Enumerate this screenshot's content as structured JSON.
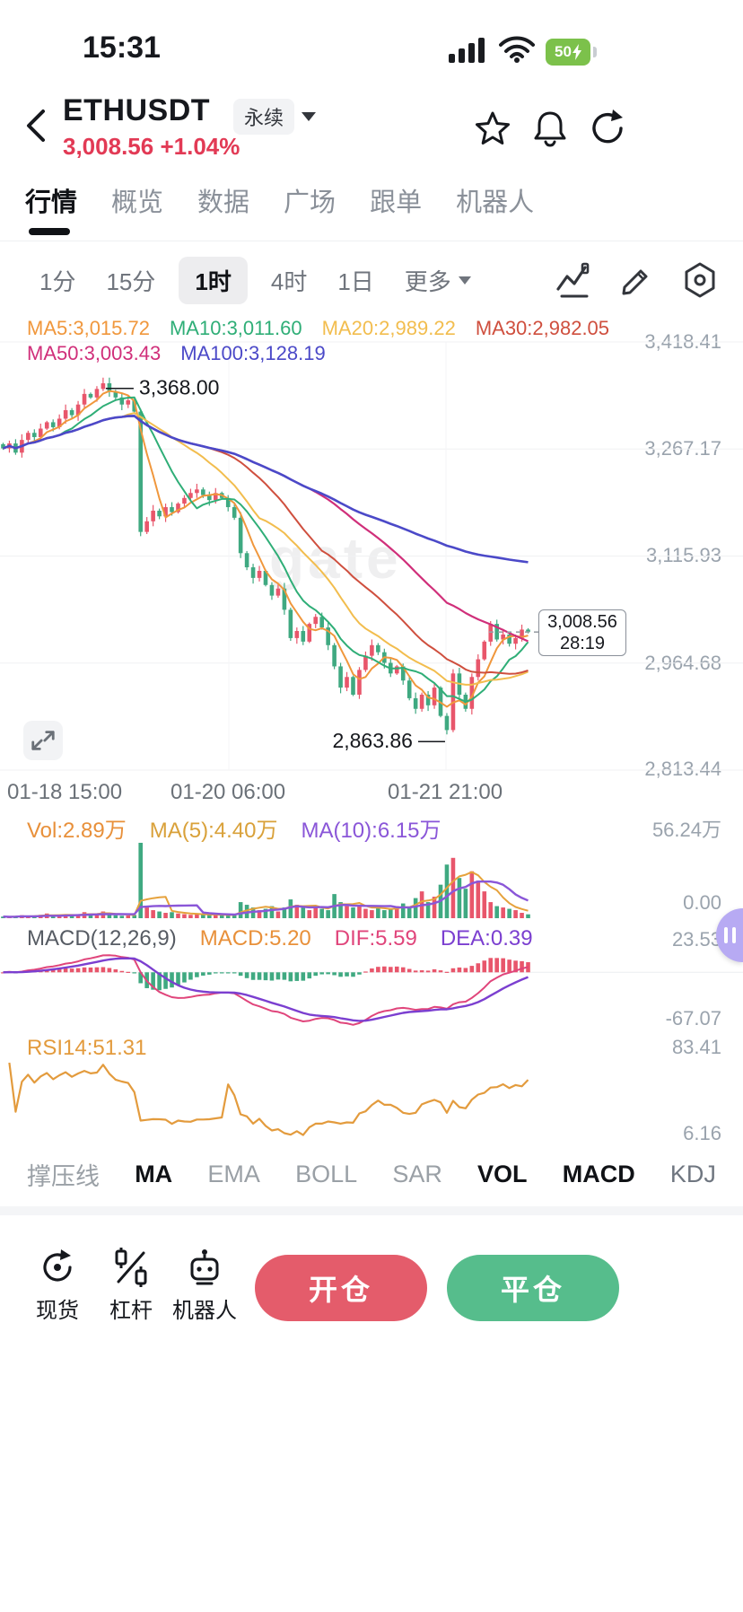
{
  "colors": {
    "up": "#e8566b",
    "down": "#3fa981",
    "accent_red": "#e23a55",
    "ma5": "#f0973c",
    "ma10": "#2fae77",
    "ma20": "#f2bd4e",
    "ma30": "#cf4f3e",
    "ma50": "#d02f7a",
    "ma100": "#4b49c8",
    "vol_ma5": "#e6a23c",
    "vol_ma10": "#8a56d8",
    "dif": "#e0457b",
    "dea": "#7b3fd0",
    "rsi": "#e39b3d",
    "btn_open": "#e45c6b",
    "btn_close": "#56bd8c"
  },
  "status_bar": {
    "time": "15:31",
    "battery_level": "50"
  },
  "header": {
    "symbol": "ETHUSDT",
    "contract_type": "永续",
    "price": "3,008.56",
    "change": "+1.04%"
  },
  "nav_tabs": {
    "items": [
      {
        "label": "行情"
      },
      {
        "label": "概览"
      },
      {
        "label": "数据"
      },
      {
        "label": "广场"
      },
      {
        "label": "跟单"
      },
      {
        "label": "机器人"
      }
    ]
  },
  "timeframe_bar": {
    "items": [
      "1分",
      "15分",
      "1时",
      "4时",
      "1日"
    ],
    "more_label": "更多"
  },
  "main_chart": {
    "ma_labels": {
      "ma5": "MA5:3,015.72",
      "ma10": "MA10:3,011.60",
      "ma20": "MA20:2,989.22",
      "ma30": "MA30:2,982.05",
      "ma50": "MA50:3,003.43",
      "ma100": "MA100:3,128.19"
    },
    "price_axis_labels": [
      "3,418.41",
      "3,267.17",
      "3,115.93",
      "2,964.68",
      "2,813.44"
    ],
    "high_label": "3,368.00",
    "low_label": "2,863.86",
    "price_box": {
      "price": "3,008.56",
      "countdown": "28:19"
    },
    "x_axis_labels": [
      "01-18 15:00",
      "01-20 06:00",
      "01-21 21:00"
    ],
    "watermark": "gate"
  },
  "volume_panel": {
    "vol_label": "Vol:2.89万",
    "ma5_label": "MA(5):4.40万",
    "ma10_label": "MA(10):6.15万",
    "axis_top": "56.24万",
    "axis_bottom": "0.00"
  },
  "macd_panel": {
    "title": "MACD(12,26,9)",
    "macd_label": "MACD:5.20",
    "dif_label": "DIF:5.59",
    "dea_label": "DEA:0.39",
    "axis_top": "23.53",
    "axis_bottom": "-67.07"
  },
  "rsi_panel": {
    "label": "RSI14:51.31",
    "axis_top": "83.41",
    "axis_bottom": "6.16"
  },
  "indicator_tabs": {
    "items": [
      {
        "label": "撑压线",
        "active": false
      },
      {
        "label": "MA",
        "active": true
      },
      {
        "label": "EMA",
        "active": false
      },
      {
        "label": "BOLL",
        "active": false
      },
      {
        "label": "SAR",
        "active": false
      },
      {
        "label": "VOL",
        "active": true
      },
      {
        "label": "MACD",
        "active": true
      },
      {
        "label": "KDJ",
        "active": false
      }
    ]
  },
  "bottom_bar": {
    "spot_label": "现货",
    "margin_label": "杠杆",
    "bot_label": "机器人",
    "open_button": "开仓",
    "close_button": "平仓"
  },
  "chart_data": {
    "type": "candlestick",
    "symbol": "ETHUSDT",
    "interval": "1时",
    "title": "ETHUSDT 永续 1时 K线",
    "price_axis": {
      "top": 3418.41,
      "bottom": 2813.44
    },
    "volume_axis": {
      "top": 56.24,
      "bottom": 0
    },
    "macd_axis": {
      "top": 23.53,
      "bottom": -67.07
    },
    "rsi_axis": {
      "top": 83.41,
      "bottom": 6.16
    },
    "high": {
      "value": 3368.0,
      "index": 16
    },
    "low": {
      "value": 2863.86,
      "index": 71
    },
    "last_price": 3008.56,
    "closes": [
      3268,
      3275,
      3262,
      3280,
      3290,
      3284,
      3296,
      3305,
      3298,
      3310,
      3322,
      3315,
      3330,
      3345,
      3340,
      3352,
      3360,
      3348,
      3340,
      3330,
      3336,
      3320,
      3150,
      3165,
      3180,
      3172,
      3185,
      3178,
      3190,
      3198,
      3205,
      3210,
      3202,
      3195,
      3205,
      3198,
      3185,
      3170,
      3120,
      3100,
      3085,
      3095,
      3075,
      3060,
      3070,
      3040,
      3000,
      3010,
      2995,
      3020,
      3030,
      3015,
      2990,
      2960,
      2930,
      2945,
      2920,
      2955,
      2975,
      2990,
      2980,
      2965,
      2950,
      2960,
      2940,
      2915,
      2900,
      2920,
      2905,
      2930,
      2890,
      2870,
      2950,
      2920,
      2900,
      2945,
      2970,
      2995,
      3020,
      2998,
      3005,
      2992,
      3000,
      3012,
      3008.56
    ],
    "volumes": [
      1.2,
      0.8,
      1.5,
      2.2,
      1.0,
      1.8,
      2.5,
      3.5,
      2.0,
      1.6,
      2.8,
      2.2,
      3.0,
      4.5,
      2.6,
      3.2,
      5.0,
      3.0,
      2.2,
      1.8,
      2.0,
      2.4,
      56.24,
      8.0,
      6.0,
      5.0,
      4.0,
      4.5,
      3.5,
      3.0,
      2.5,
      3.0,
      2.8,
      2.4,
      2.6,
      2.2,
      2.0,
      3.0,
      12.0,
      10.0,
      8.0,
      6.0,
      7.0,
      9.0,
      5.0,
      8.0,
      14.0,
      10.0,
      8.0,
      6.0,
      9.0,
      7.0,
      6.0,
      18.0,
      12.0,
      9.0,
      8.0,
      10.0,
      7.0,
      6.0,
      8.0,
      6.0,
      7.0,
      9.0,
      11.0,
      8.0,
      15.0,
      20.0,
      12.0,
      16.0,
      25.0,
      40.0,
      45.0,
      30.0,
      22.0,
      35.0,
      28.0,
      20.0,
      12.0,
      9.0,
      8.0,
      7.0,
      6.0,
      4.0,
      2.89
    ]
  }
}
